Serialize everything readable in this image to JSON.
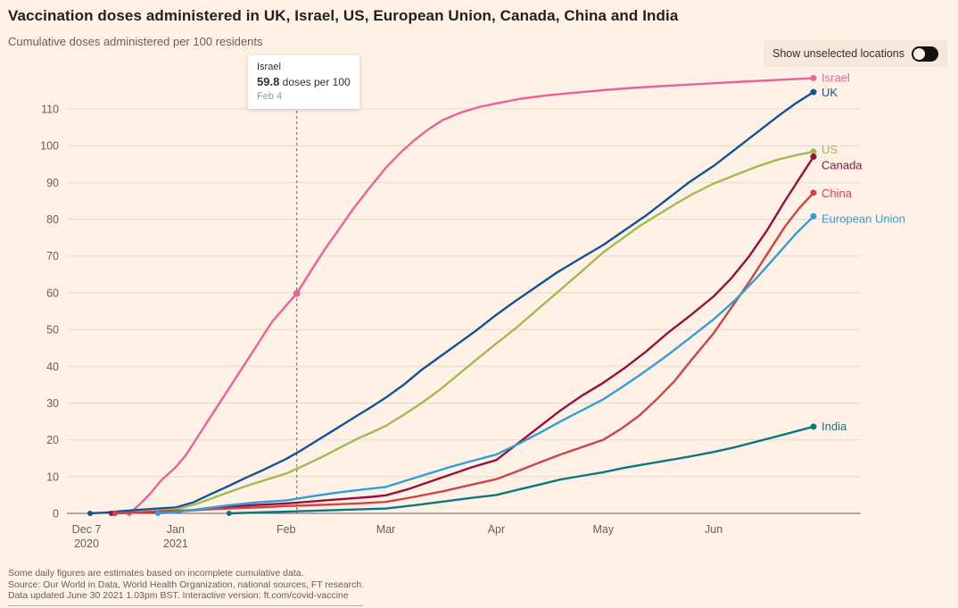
{
  "header": {
    "title": "Vaccination doses administered in UK, Israel, US, European Union, Canada, China and India",
    "subtitle": "Cumulative doses administered per 100 residents",
    "toggle_label": "Show unselected locations",
    "toggle_on": false
  },
  "tooltip": {
    "location": "Israel",
    "value": "59.8",
    "value_suffix": " doses per 100",
    "date": "Feb 4",
    "day": 59,
    "y": 59.8
  },
  "footer": {
    "note": "Some daily figures are estimates based on incomplete cumulative data.",
    "source": "Source: Our World in Data, World Health Organization, national sources, FT research.",
    "updated": "Data updated June 30 2021 1.03pm BST. Interactive version: ft.com/covid-vaccine"
  },
  "colors": {
    "background": "#fff1e5",
    "grid": "#e8d9c7",
    "axis_text": "#66605c",
    "zero_line": "#66605c"
  },
  "chart_data": {
    "type": "line",
    "title": "Vaccination doses administered in UK, Israel, US, European Union, Canada, China and India",
    "subtitle": "Cumulative doses administered per 100 residents",
    "xlabel": "",
    "ylabel": "Cumulative doses administered per 100 residents",
    "x_unit": "days since Dec 7 2020",
    "xlim": [
      0,
      217
    ],
    "ylim": [
      0,
      120
    ],
    "grid": true,
    "legend_position": "right-of-line-ends",
    "yticks": [
      0,
      10,
      20,
      30,
      40,
      50,
      60,
      70,
      80,
      90,
      100,
      110
    ],
    "xticks": [
      {
        "day": 0,
        "label": "Dec 7",
        "sublabel": "2020"
      },
      {
        "day": 25,
        "label": "Jan",
        "sublabel": "2021"
      },
      {
        "day": 56,
        "label": "Feb"
      },
      {
        "day": 84,
        "label": "Mar"
      },
      {
        "day": 115,
        "label": "Apr"
      },
      {
        "day": 145,
        "label": "May"
      },
      {
        "day": 176,
        "label": "Jun"
      }
    ],
    "series": [
      {
        "id": "israel",
        "name": "Israel",
        "color": "#e9639a",
        "label_dy": 0,
        "points": [
          [
            12,
            0
          ],
          [
            15,
            2.5
          ],
          [
            18,
            5.5
          ],
          [
            21,
            9
          ],
          [
            25,
            12.5
          ],
          [
            28,
            16
          ],
          [
            32,
            22
          ],
          [
            36,
            28
          ],
          [
            40,
            34
          ],
          [
            44,
            40
          ],
          [
            48,
            46
          ],
          [
            52,
            52
          ],
          [
            56,
            56.5
          ],
          [
            59,
            59.8
          ],
          [
            63,
            66
          ],
          [
            67,
            72
          ],
          [
            71,
            77.5
          ],
          [
            75,
            83
          ],
          [
            79,
            88
          ],
          [
            84,
            94
          ],
          [
            88,
            98
          ],
          [
            92,
            101.5
          ],
          [
            96,
            104.5
          ],
          [
            100,
            107
          ],
          [
            105,
            109
          ],
          [
            110,
            110.5
          ],
          [
            115,
            111.5
          ],
          [
            122,
            112.8
          ],
          [
            130,
            113.8
          ],
          [
            138,
            114.5
          ],
          [
            145,
            115.1
          ],
          [
            153,
            115.7
          ],
          [
            161,
            116.2
          ],
          [
            169,
            116.6
          ],
          [
            176,
            117
          ],
          [
            184,
            117.4
          ],
          [
            192,
            117.8
          ],
          [
            198,
            118.1
          ],
          [
            204,
            118.4
          ]
        ]
      },
      {
        "id": "uk",
        "name": "UK",
        "color": "#0f5499",
        "label_dy": 1,
        "points": [
          [
            1,
            0
          ],
          [
            5,
            0.2
          ],
          [
            10,
            0.6
          ],
          [
            15,
            1
          ],
          [
            20,
            1.3
          ],
          [
            25,
            1.6
          ],
          [
            30,
            3
          ],
          [
            35,
            5.3
          ],
          [
            40,
            7.5
          ],
          [
            45,
            9.8
          ],
          [
            50,
            12
          ],
          [
            56,
            14.8
          ],
          [
            60,
            17
          ],
          [
            65,
            20
          ],
          [
            70,
            23
          ],
          [
            75,
            26
          ],
          [
            80,
            29
          ],
          [
            84,
            31.5
          ],
          [
            89,
            35
          ],
          [
            94,
            39
          ],
          [
            99,
            42.5
          ],
          [
            104,
            46
          ],
          [
            109,
            49.5
          ],
          [
            115,
            54
          ],
          [
            120,
            57.5
          ],
          [
            126,
            61.5
          ],
          [
            132,
            65.5
          ],
          [
            138,
            69
          ],
          [
            145,
            73
          ],
          [
            151,
            77
          ],
          [
            157,
            81
          ],
          [
            163,
            85.5
          ],
          [
            169,
            90
          ],
          [
            176,
            94.5
          ],
          [
            182,
            99
          ],
          [
            188,
            103.5
          ],
          [
            194,
            108
          ],
          [
            199,
            111.5
          ],
          [
            204,
            114.6
          ]
        ]
      },
      {
        "id": "us",
        "name": "US",
        "color": "#a2ba52",
        "label_dy": -2,
        "points": [
          [
            7,
            0
          ],
          [
            14,
            0.3
          ],
          [
            20,
            0.7
          ],
          [
            25,
            1.1
          ],
          [
            30,
            2.3
          ],
          [
            35,
            4
          ],
          [
            40,
            5.8
          ],
          [
            45,
            7.5
          ],
          [
            50,
            9
          ],
          [
            56,
            10.8
          ],
          [
            61,
            13
          ],
          [
            66,
            15.3
          ],
          [
            71,
            17.8
          ],
          [
            76,
            20.3
          ],
          [
            80,
            22
          ],
          [
            84,
            23.8
          ],
          [
            89,
            26.8
          ],
          [
            94,
            30
          ],
          [
            99,
            33.5
          ],
          [
            104,
            37.5
          ],
          [
            109,
            41.5
          ],
          [
            115,
            46.2
          ],
          [
            120,
            50
          ],
          [
            126,
            55
          ],
          [
            132,
            60
          ],
          [
            138,
            65
          ],
          [
            145,
            71
          ],
          [
            150,
            74.5
          ],
          [
            155,
            78
          ],
          [
            160,
            81
          ],
          [
            165,
            84
          ],
          [
            170,
            86.8
          ],
          [
            176,
            89.7
          ],
          [
            182,
            92
          ],
          [
            188,
            94.3
          ],
          [
            194,
            96.2
          ],
          [
            199,
            97.4
          ],
          [
            204,
            98.4
          ]
        ]
      },
      {
        "id": "canada",
        "name": "Canada",
        "color": "#990f3d",
        "label_dy": 10,
        "points": [
          [
            7,
            0
          ],
          [
            14,
            0.2
          ],
          [
            20,
            0.3
          ],
          [
            25,
            0.5
          ],
          [
            32,
            1
          ],
          [
            40,
            1.8
          ],
          [
            48,
            2.3
          ],
          [
            56,
            2.7
          ],
          [
            64,
            3.3
          ],
          [
            72,
            3.9
          ],
          [
            80,
            4.5
          ],
          [
            84,
            4.9
          ],
          [
            90,
            6.5
          ],
          [
            96,
            8.5
          ],
          [
            102,
            10.5
          ],
          [
            108,
            12.5
          ],
          [
            115,
            14.5
          ],
          [
            121,
            19
          ],
          [
            127,
            23.5
          ],
          [
            133,
            28
          ],
          [
            139,
            32
          ],
          [
            145,
            35.5
          ],
          [
            151,
            39.5
          ],
          [
            157,
            44
          ],
          [
            163,
            49
          ],
          [
            169,
            53.5
          ],
          [
            176,
            59
          ],
          [
            181,
            64
          ],
          [
            186,
            70
          ],
          [
            191,
            77
          ],
          [
            196,
            85
          ],
          [
            200,
            91
          ],
          [
            204,
            97
          ]
        ]
      },
      {
        "id": "china",
        "name": "China",
        "color": "#cf4446",
        "label_dy": 1,
        "points": [
          [
            8,
            0
          ],
          [
            15,
            0.3
          ],
          [
            22,
            0.6
          ],
          [
            30,
            0.9
          ],
          [
            40,
            1.3
          ],
          [
            50,
            1.7
          ],
          [
            56,
            2
          ],
          [
            66,
            2.3
          ],
          [
            76,
            2.7
          ],
          [
            84,
            3.1
          ],
          [
            92,
            4.5
          ],
          [
            100,
            6
          ],
          [
            108,
            7.8
          ],
          [
            115,
            9.3
          ],
          [
            121,
            11.5
          ],
          [
            127,
            13.8
          ],
          [
            133,
            16
          ],
          [
            139,
            18
          ],
          [
            145,
            20
          ],
          [
            150,
            23
          ],
          [
            155,
            26.5
          ],
          [
            160,
            31
          ],
          [
            165,
            36
          ],
          [
            170,
            42
          ],
          [
            176,
            49
          ],
          [
            181,
            56
          ],
          [
            186,
            63
          ],
          [
            191,
            70.5
          ],
          [
            196,
            78
          ],
          [
            200,
            83
          ],
          [
            204,
            87.2
          ]
        ]
      },
      {
        "id": "european-union",
        "name": "European Union",
        "color": "#2f9fd8",
        "label_dy": 3,
        "points": [
          [
            20,
            0
          ],
          [
            25,
            0.3
          ],
          [
            32,
            1.2
          ],
          [
            40,
            2.2
          ],
          [
            48,
            3
          ],
          [
            56,
            3.5
          ],
          [
            63,
            4.6
          ],
          [
            70,
            5.6
          ],
          [
            77,
            6.4
          ],
          [
            84,
            7.2
          ],
          [
            90,
            9
          ],
          [
            96,
            10.8
          ],
          [
            102,
            12.6
          ],
          [
            108,
            14.2
          ],
          [
            115,
            16
          ],
          [
            121,
            18.8
          ],
          [
            127,
            21.8
          ],
          [
            133,
            25
          ],
          [
            139,
            28
          ],
          [
            145,
            31
          ],
          [
            151,
            34.8
          ],
          [
            157,
            38.8
          ],
          [
            163,
            43
          ],
          [
            169,
            47.5
          ],
          [
            176,
            52.8
          ],
          [
            182,
            58
          ],
          [
            188,
            64
          ],
          [
            194,
            70.5
          ],
          [
            199,
            76
          ],
          [
            204,
            80.8
          ]
        ]
      },
      {
        "id": "india",
        "name": "India",
        "color": "#0d7680",
        "label_dy": 0,
        "points": [
          [
            40,
            0
          ],
          [
            48,
            0.25
          ],
          [
            56,
            0.45
          ],
          [
            64,
            0.7
          ],
          [
            72,
            0.95
          ],
          [
            84,
            1.3
          ],
          [
            92,
            2.2
          ],
          [
            100,
            3.2
          ],
          [
            108,
            4.2
          ],
          [
            115,
            5
          ],
          [
            121,
            6.4
          ],
          [
            127,
            7.8
          ],
          [
            133,
            9.2
          ],
          [
            139,
            10.2
          ],
          [
            145,
            11.2
          ],
          [
            151,
            12.4
          ],
          [
            157,
            13.4
          ],
          [
            163,
            14.4
          ],
          [
            169,
            15.4
          ],
          [
            176,
            16.7
          ],
          [
            182,
            18
          ],
          [
            188,
            19.5
          ],
          [
            194,
            21
          ],
          [
            199,
            22.3
          ],
          [
            204,
            23.6
          ]
        ]
      }
    ]
  }
}
